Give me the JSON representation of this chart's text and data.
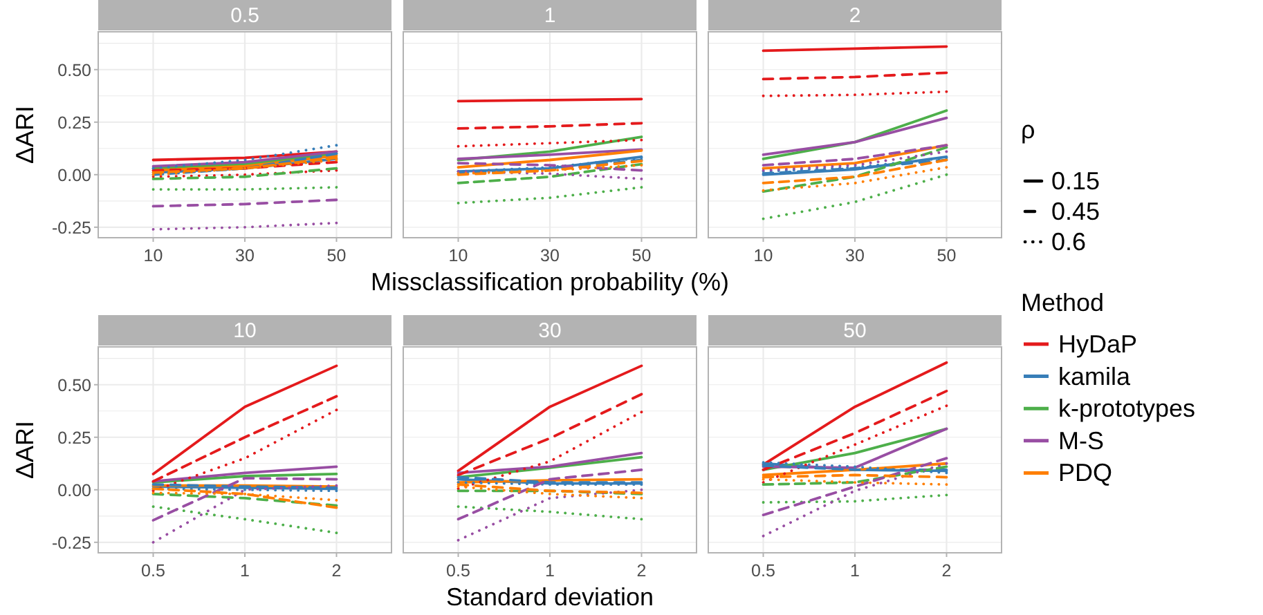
{
  "chart_data": [
    {
      "type": "line",
      "title": "0.5",
      "categories": [
        "10",
        "30",
        "50"
      ],
      "ylabel": "ΔARI",
      "legend": "right",
      "legend_title": "Method",
      "annotations": [
        "ρ",
        "0.15",
        "0.45",
        "0.6"
      ],
      "ylim": [
        -0.3,
        0.68
      ],
      "yticks": [
        {
          "value": -0.25,
          "label": "-0.25"
        },
        {
          "value": -0.125,
          "label": null
        },
        {
          "value": 0,
          "label": "0.00"
        },
        {
          "value": 0.125,
          "label": null
        },
        {
          "value": 0.25,
          "label": "0.25"
        },
        {
          "value": 0.375,
          "label": null
        },
        {
          "value": 0.5,
          "label": "0.50"
        },
        {
          "value": 0.625,
          "label": null
        }
      ],
      "grid": true,
      "series": [
        {
          "name": "HyDaP",
          "color": "#e41a1c",
          "line_style": "solid",
          "values": [
            0.07,
            0.08,
            0.11
          ]
        },
        {
          "color": "#e41a1c",
          "line_style": "dashed",
          "values": [
            0.02,
            0.03,
            0.06
          ]
        },
        {
          "color": "#e41a1c",
          "line_style": "dotted",
          "values": [
            -0.01,
            0.0,
            0.02
          ]
        },
        {
          "name": "kamila",
          "color": "#377eb8",
          "line_style": "solid",
          "values": [
            0.01,
            0.03,
            0.075
          ]
        },
        {
          "color": "#377eb8",
          "line_style": "dashed",
          "values": [
            0.0,
            0.03,
            0.1
          ]
        },
        {
          "color": "#377eb8",
          "line_style": "dotted",
          "values": [
            0.03,
            0.07,
            0.14
          ]
        },
        {
          "name": "k-prototypes",
          "color": "#4daf4a",
          "line_style": "solid",
          "values": [
            0.03,
            0.05,
            0.1
          ]
        },
        {
          "color": "#4daf4a",
          "line_style": "dashed",
          "values": [
            -0.02,
            -0.01,
            0.03
          ]
        },
        {
          "color": "#4daf4a",
          "line_style": "dotted",
          "values": [
            -0.07,
            -0.07,
            -0.06
          ]
        },
        {
          "name": "M-S",
          "color": "#984ea3",
          "line_style": "solid",
          "values": [
            0.04,
            0.06,
            0.11
          ]
        },
        {
          "color": "#984ea3",
          "line_style": "dashed",
          "values": [
            -0.15,
            -0.14,
            -0.12
          ]
        },
        {
          "color": "#984ea3",
          "line_style": "dotted",
          "values": [
            -0.26,
            -0.25,
            -0.23
          ]
        },
        {
          "name": "PDQ",
          "color": "#ff7f00",
          "line_style": "solid",
          "values": [
            0.02,
            0.04,
            0.09
          ]
        },
        {
          "color": "#ff7f00",
          "line_style": "dashed",
          "values": [
            0.01,
            0.03,
            0.08
          ]
        },
        {
          "color": "#ff7f00",
          "line_style": "dotted",
          "values": [
            0.0,
            0.03,
            0.07
          ]
        }
      ]
    },
    {
      "type": "line",
      "title": "1",
      "categories": [
        "10",
        "30",
        "50"
      ],
      "xlabel": "Missclassification probability (%)",
      "ylim": [
        -0.3,
        0.68
      ],
      "yticks": [
        {
          "value": -0.25,
          "label": null
        },
        {
          "value": -0.125,
          "label": null
        },
        {
          "value": 0,
          "label": null
        },
        {
          "value": 0.125,
          "label": null
        },
        {
          "value": 0.25,
          "label": null
        },
        {
          "value": 0.375,
          "label": null
        },
        {
          "value": 0.5,
          "label": null
        },
        {
          "value": 0.625,
          "label": null
        }
      ],
      "grid": true,
      "tick_labels": "x",
      "series": [
        {
          "color": "#e41a1c",
          "line_style": "solid",
          "values": [
            0.35,
            0.355,
            0.36
          ]
        },
        {
          "color": "#e41a1c",
          "line_style": "dashed",
          "values": [
            0.22,
            0.23,
            0.245
          ]
        },
        {
          "color": "#e41a1c",
          "line_style": "dotted",
          "values": [
            0.135,
            0.15,
            0.165
          ]
        },
        {
          "color": "#377eb8",
          "line_style": "solid",
          "values": [
            0.015,
            0.03,
            0.085
          ]
        },
        {
          "color": "#377eb8",
          "line_style": "dashed",
          "values": [
            0.005,
            0.025,
            0.07
          ]
        },
        {
          "color": "#377eb8",
          "line_style": "dotted",
          "values": [
            0.015,
            0.035,
            0.08
          ]
        },
        {
          "color": "#4daf4a",
          "line_style": "solid",
          "values": [
            0.07,
            0.11,
            0.18
          ]
        },
        {
          "color": "#4daf4a",
          "line_style": "dashed",
          "values": [
            -0.04,
            -0.01,
            0.05
          ]
        },
        {
          "color": "#4daf4a",
          "line_style": "dotted",
          "values": [
            -0.135,
            -0.11,
            -0.06
          ]
        },
        {
          "color": "#984ea3",
          "line_style": "solid",
          "values": [
            0.075,
            0.095,
            0.12
          ]
        },
        {
          "color": "#984ea3",
          "line_style": "dashed",
          "values": [
            0.055,
            0.045,
            0.02
          ]
        },
        {
          "color": "#984ea3",
          "line_style": "dotted",
          "values": [
            0.015,
            0.005,
            -0.02
          ]
        },
        {
          "color": "#ff7f00",
          "line_style": "solid",
          "values": [
            0.035,
            0.07,
            0.115
          ]
        },
        {
          "color": "#ff7f00",
          "line_style": "dashed",
          "values": [
            0.0,
            0.02,
            0.065
          ]
        },
        {
          "color": "#ff7f00",
          "line_style": "dotted",
          "values": [
            0.005,
            0.02,
            0.045
          ]
        }
      ]
    },
    {
      "type": "line",
      "title": "2",
      "categories": [
        "10",
        "30",
        "50"
      ],
      "ylim": [
        -0.3,
        0.68
      ],
      "yticks": [
        {
          "value": -0.25,
          "label": null
        },
        {
          "value": -0.125,
          "label": null
        },
        {
          "value": 0,
          "label": null
        },
        {
          "value": 0.125,
          "label": null
        },
        {
          "value": 0.25,
          "label": null
        },
        {
          "value": 0.375,
          "label": null
        },
        {
          "value": 0.5,
          "label": null
        },
        {
          "value": 0.625,
          "label": null
        }
      ],
      "grid": true,
      "tick_labels": "x",
      "series": [
        {
          "color": "#e41a1c",
          "line_style": "solid",
          "values": [
            0.59,
            0.6,
            0.61
          ]
        },
        {
          "color": "#e41a1c",
          "line_style": "dashed",
          "values": [
            0.455,
            0.465,
            0.485
          ]
        },
        {
          "color": "#e41a1c",
          "line_style": "dotted",
          "values": [
            0.375,
            0.38,
            0.395
          ]
        },
        {
          "color": "#377eb8",
          "line_style": "solid",
          "values": [
            0.0,
            0.025,
            0.085
          ]
        },
        {
          "color": "#377eb8",
          "line_style": "dashed",
          "values": [
            0.005,
            0.03,
            0.07
          ]
        },
        {
          "color": "#377eb8",
          "line_style": "dotted",
          "values": [
            0.015,
            0.035,
            0.08
          ]
        },
        {
          "color": "#4daf4a",
          "line_style": "solid",
          "values": [
            0.075,
            0.155,
            0.305
          ]
        },
        {
          "color": "#4daf4a",
          "line_style": "dashed",
          "values": [
            -0.08,
            -0.01,
            0.13
          ]
        },
        {
          "color": "#4daf4a",
          "line_style": "dotted",
          "values": [
            -0.21,
            -0.13,
            0.0
          ]
        },
        {
          "color": "#984ea3",
          "line_style": "solid",
          "values": [
            0.095,
            0.155,
            0.27
          ]
        },
        {
          "color": "#984ea3",
          "line_style": "dashed",
          "values": [
            0.045,
            0.075,
            0.14
          ]
        },
        {
          "color": "#984ea3",
          "line_style": "dotted",
          "values": [
            0.02,
            0.045,
            0.11
          ]
        },
        {
          "color": "#ff7f00",
          "line_style": "solid",
          "values": [
            0.03,
            0.055,
            0.14
          ]
        },
        {
          "color": "#ff7f00",
          "line_style": "dashed",
          "values": [
            -0.04,
            -0.01,
            0.07
          ]
        },
        {
          "color": "#ff7f00",
          "line_style": "dotted",
          "values": [
            -0.075,
            -0.04,
            0.035
          ]
        }
      ]
    },
    {
      "type": "line",
      "title": "10",
      "categories": [
        "0.5",
        "1",
        "2"
      ],
      "ylabel": "ΔARI",
      "ylim": [
        -0.3,
        0.68
      ],
      "yticks": [
        {
          "value": -0.25,
          "label": "-0.25"
        },
        {
          "value": -0.125,
          "label": null
        },
        {
          "value": 0,
          "label": "0.00"
        },
        {
          "value": 0.125,
          "label": null
        },
        {
          "value": 0.25,
          "label": "0.25"
        },
        {
          "value": 0.375,
          "label": null
        },
        {
          "value": 0.5,
          "label": "0.50"
        },
        {
          "value": 0.625,
          "label": null
        }
      ],
      "grid": true,
      "series": [
        {
          "color": "#e41a1c",
          "line_style": "solid",
          "values": [
            0.075,
            0.395,
            0.59
          ]
        },
        {
          "color": "#e41a1c",
          "line_style": "dashed",
          "values": [
            0.04,
            0.25,
            0.445
          ]
        },
        {
          "color": "#e41a1c",
          "line_style": "dotted",
          "values": [
            -0.005,
            0.15,
            0.38
          ]
        },
        {
          "color": "#377eb8",
          "line_style": "solid",
          "values": [
            0.015,
            0.01,
            0.005
          ]
        },
        {
          "color": "#377eb8",
          "line_style": "dashed",
          "values": [
            0.025,
            0.015,
            0.01
          ]
        },
        {
          "color": "#377eb8",
          "line_style": "dotted",
          "values": [
            0.005,
            0.0,
            -0.005
          ]
        },
        {
          "color": "#4daf4a",
          "line_style": "solid",
          "values": [
            0.035,
            0.065,
            0.075
          ]
        },
        {
          "color": "#4daf4a",
          "line_style": "dashed",
          "values": [
            -0.02,
            -0.04,
            -0.075
          ]
        },
        {
          "color": "#4daf4a",
          "line_style": "dotted",
          "values": [
            -0.08,
            -0.14,
            -0.205
          ]
        },
        {
          "color": "#984ea3",
          "line_style": "solid",
          "values": [
            0.04,
            0.08,
            0.11
          ]
        },
        {
          "color": "#984ea3",
          "line_style": "dashed",
          "values": [
            -0.145,
            0.055,
            0.05
          ]
        },
        {
          "color": "#984ea3",
          "line_style": "dotted",
          "values": [
            -0.25,
            0.0,
            0.02
          ]
        },
        {
          "color": "#ff7f00",
          "line_style": "solid",
          "values": [
            0.02,
            0.02,
            0.015
          ]
        },
        {
          "color": "#ff7f00",
          "line_style": "dashed",
          "values": [
            0.005,
            -0.02,
            -0.085
          ]
        },
        {
          "color": "#ff7f00",
          "line_style": "dotted",
          "values": [
            -0.015,
            -0.02,
            -0.05
          ]
        }
      ]
    },
    {
      "type": "line",
      "title": "30",
      "categories": [
        "0.5",
        "1",
        "2"
      ],
      "xlabel": "Standard deviation",
      "ylim": [
        -0.3,
        0.68
      ],
      "yticks": [
        {
          "value": -0.25,
          "label": null
        },
        {
          "value": -0.125,
          "label": null
        },
        {
          "value": 0,
          "label": null
        },
        {
          "value": 0.125,
          "label": null
        },
        {
          "value": 0.25,
          "label": null
        },
        {
          "value": 0.375,
          "label": null
        },
        {
          "value": 0.5,
          "label": null
        },
        {
          "value": 0.625,
          "label": null
        }
      ],
      "grid": true,
      "tick_labels": "x",
      "series": [
        {
          "color": "#e41a1c",
          "line_style": "solid",
          "values": [
            0.09,
            0.395,
            0.59
          ]
        },
        {
          "color": "#e41a1c",
          "line_style": "dashed",
          "values": [
            0.07,
            0.245,
            0.455
          ]
        },
        {
          "color": "#e41a1c",
          "line_style": "dotted",
          "values": [
            0.005,
            0.135,
            0.37
          ]
        },
        {
          "color": "#377eb8",
          "line_style": "solid",
          "values": [
            0.05,
            0.03,
            0.03
          ]
        },
        {
          "color": "#377eb8",
          "line_style": "dashed",
          "values": [
            0.06,
            0.035,
            0.035
          ]
        },
        {
          "color": "#377eb8",
          "line_style": "dotted",
          "values": [
            0.035,
            0.025,
            0.025
          ]
        },
        {
          "color": "#4daf4a",
          "line_style": "solid",
          "values": [
            0.06,
            0.105,
            0.155
          ]
        },
        {
          "color": "#4daf4a",
          "line_style": "dashed",
          "values": [
            -0.005,
            -0.005,
            -0.02
          ]
        },
        {
          "color": "#4daf4a",
          "line_style": "dotted",
          "values": [
            -0.08,
            -0.105,
            -0.14
          ]
        },
        {
          "color": "#984ea3",
          "line_style": "solid",
          "values": [
            0.08,
            0.11,
            0.175
          ]
        },
        {
          "color": "#984ea3",
          "line_style": "dashed",
          "values": [
            -0.14,
            0.05,
            0.095
          ]
        },
        {
          "color": "#984ea3",
          "line_style": "dotted",
          "values": [
            -0.24,
            -0.04,
            0.0
          ]
        },
        {
          "color": "#ff7f00",
          "line_style": "solid",
          "values": [
            0.035,
            0.045,
            0.05
          ]
        },
        {
          "color": "#ff7f00",
          "line_style": "dashed",
          "values": [
            0.025,
            -0.005,
            -0.015
          ]
        },
        {
          "color": "#ff7f00",
          "line_style": "dotted",
          "values": [
            0.015,
            -0.02,
            -0.04
          ]
        }
      ]
    },
    {
      "type": "line",
      "title": "50",
      "categories": [
        "0.5",
        "1",
        "2"
      ],
      "ylim": [
        -0.3,
        0.68
      ],
      "yticks": [
        {
          "value": -0.25,
          "label": null
        },
        {
          "value": -0.125,
          "label": null
        },
        {
          "value": 0,
          "label": null
        },
        {
          "value": 0.125,
          "label": null
        },
        {
          "value": 0.25,
          "label": null
        },
        {
          "value": 0.375,
          "label": null
        },
        {
          "value": 0.5,
          "label": null
        },
        {
          "value": 0.625,
          "label": null
        }
      ],
      "grid": true,
      "tick_labels": "x",
      "series": [
        {
          "color": "#e41a1c",
          "line_style": "solid",
          "values": [
            0.12,
            0.395,
            0.605
          ]
        },
        {
          "color": "#e41a1c",
          "line_style": "dashed",
          "values": [
            0.095,
            0.27,
            0.47
          ]
        },
        {
          "color": "#e41a1c",
          "line_style": "dotted",
          "values": [
            0.035,
            0.215,
            0.4
          ]
        },
        {
          "color": "#377eb8",
          "line_style": "solid",
          "values": [
            0.125,
            0.095,
            0.09
          ]
        },
        {
          "color": "#377eb8",
          "line_style": "dashed",
          "values": [
            0.115,
            0.095,
            0.095
          ]
        },
        {
          "color": "#377eb8",
          "line_style": "dotted",
          "values": [
            0.13,
            0.11,
            0.08
          ]
        },
        {
          "color": "#4daf4a",
          "line_style": "solid",
          "values": [
            0.095,
            0.175,
            0.29
          ]
        },
        {
          "color": "#4daf4a",
          "line_style": "dashed",
          "values": [
            0.025,
            0.035,
            0.11
          ]
        },
        {
          "color": "#4daf4a",
          "line_style": "dotted",
          "values": [
            -0.06,
            -0.055,
            -0.025
          ]
        },
        {
          "color": "#984ea3",
          "line_style": "solid",
          "values": [
            0.11,
            0.105,
            0.29
          ]
        },
        {
          "color": "#984ea3",
          "line_style": "dashed",
          "values": [
            -0.12,
            0.015,
            0.15
          ]
        },
        {
          "color": "#984ea3",
          "line_style": "dotted",
          "values": [
            -0.22,
            -0.005,
            0.125
          ]
        },
        {
          "color": "#ff7f00",
          "line_style": "solid",
          "values": [
            0.07,
            0.095,
            0.125
          ]
        },
        {
          "color": "#ff7f00",
          "line_style": "dashed",
          "values": [
            0.06,
            0.07,
            0.06
          ]
        },
        {
          "color": "#ff7f00",
          "line_style": "dotted",
          "values": [
            0.05,
            0.035,
            0.025
          ]
        }
      ]
    }
  ]
}
